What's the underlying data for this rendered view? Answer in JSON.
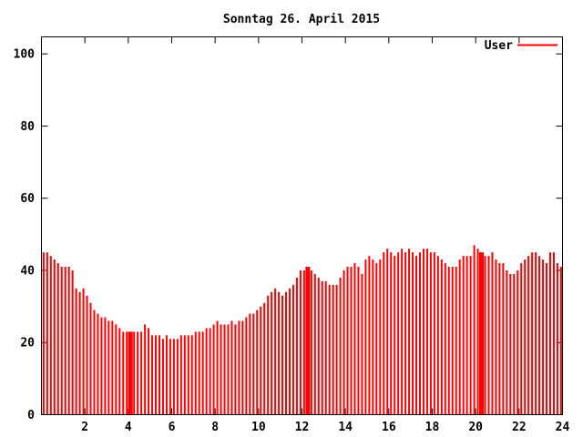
{
  "window": {
    "background": "#ffffff"
  },
  "chart_data": {
    "type": "bar",
    "title": "Sonntag 26. April 2015",
    "xlabel": "",
    "ylabel": "",
    "xlim": [
      0,
      24
    ],
    "ylim": [
      0,
      105
    ],
    "x_ticks": [
      2,
      4,
      6,
      8,
      10,
      12,
      14,
      16,
      18,
      20,
      22,
      24
    ],
    "y_ticks": [
      0,
      20,
      40,
      60,
      80,
      100
    ],
    "grid": false,
    "bar_color": "#ff0000",
    "axis_color": "#000000",
    "legend": {
      "position": "top-right",
      "entries": [
        {
          "label": "User",
          "color": "#ff0000"
        }
      ]
    },
    "sample_interval_minutes": 10,
    "start_hour": 0,
    "values": [
      45,
      45,
      44,
      43,
      42,
      41,
      41,
      41,
      40,
      35,
      34,
      35,
      33,
      31,
      29,
      28,
      27,
      27,
      26,
      26,
      25,
      24,
      23,
      23,
      23,
      23,
      23,
      23,
      25,
      24,
      22,
      22,
      22,
      21,
      22,
      21,
      21,
      21,
      22,
      22,
      22,
      22,
      23,
      23,
      23,
      24,
      24,
      25,
      26,
      25,
      25,
      25,
      26,
      25,
      26,
      26,
      27,
      28,
      28,
      29,
      30,
      31,
      33,
      34,
      35,
      34,
      33,
      34,
      35,
      36,
      38,
      40,
      40,
      41,
      40,
      39,
      38,
      37,
      37,
      36,
      36,
      36,
      38,
      40,
      41,
      41,
      42,
      41,
      39,
      43,
      44,
      43,
      42,
      43,
      45,
      46,
      45,
      44,
      45,
      46,
      45,
      46,
      45,
      44,
      45,
      46,
      46,
      45,
      45,
      44,
      43,
      42,
      41,
      41,
      41,
      43,
      44,
      44,
      44,
      47,
      46,
      45,
      44,
      44,
      45,
      43,
      42,
      42,
      40,
      39,
      39,
      40,
      42,
      43,
      44,
      45,
      45,
      44,
      43,
      42,
      45,
      45,
      42,
      41
    ],
    "wide_bar_indices": [
      24,
      73,
      121
    ]
  }
}
